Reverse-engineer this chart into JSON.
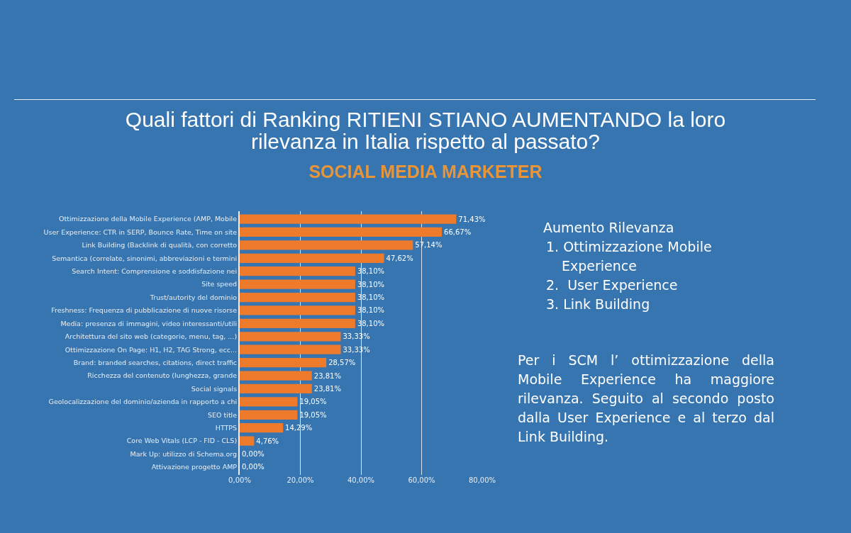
{
  "chart_data": {
    "type": "bar",
    "orientation": "horizontal",
    "title": "Quali fattori di Ranking RITIENI STIANO AUMENTANDO la loro rilevanza in Italia rispetto al passato?",
    "subtitle": "SOCIAL MEDIA MARKETER",
    "categories": [
      "Ottimizzazione della Mobile Experience (AMP, Mobile",
      "User Experience: CTR in SERP, Bounce Rate, Time on site",
      "Link Building (Backlink di qualità, con corretto",
      "Semantica (correlate, sinonimi, abbreviazioni e termini",
      "Search Intent: Comprensione e soddisfazione nei",
      "Site speed",
      "Trust/autority del dominio",
      "Freshness: Frequenza di pubblicazione di nuove risorse",
      "Media: presenza di immagini, video interessanti/utili",
      "Architettura del sito web (categorie, menu, tag, ...)",
      "Ottimizzazione On Page: H1, H2, TAG Strong, ecc...",
      "Brand: branded searches, citations, direct traffic",
      "Ricchezza del contenuto (lunghezza, grande",
      "Social signals",
      "Geolocalizzazione del dominio/azienda in rapporto a chi",
      "SEO title",
      "HTTPS",
      "Core Web Vitals (LCP - FID - CLS)",
      "Mark Up: utilizzo di Schema.org",
      "Attivazione progetto AMP"
    ],
    "values": [
      71.43,
      66.67,
      57.14,
      47.62,
      38.1,
      38.1,
      38.1,
      38.1,
      38.1,
      33.33,
      33.33,
      28.57,
      23.81,
      23.81,
      19.05,
      19.05,
      14.29,
      4.76,
      0.0,
      0.0
    ],
    "value_labels": [
      "71,43%",
      "66,67%",
      "57,14%",
      "47,62%",
      "38,10%",
      "38,10%",
      "38,10%",
      "38,10%",
      "38,10%",
      "33,33%",
      "33,33%",
      "28,57%",
      "23,81%",
      "23,81%",
      "19,05%",
      "19,05%",
      "14,29%",
      "4,76%",
      "0,00%",
      "0,00%"
    ],
    "color": "#ee7a2c",
    "xlim": [
      0,
      80
    ],
    "xticks": [
      {
        "value": 0,
        "label": "0,00%"
      },
      {
        "value": 20,
        "label": "20,00%"
      },
      {
        "value": 40,
        "label": "40,00%"
      },
      {
        "value": 60,
        "label": "60,00%"
      },
      {
        "value": 80,
        "label": "80,00%"
      }
    ],
    "grid": "x",
    "annotations": [
      "Aumento Rilevanza",
      "1. Ottimizzazione Mobile Experience",
      "2.  User Experience",
      "3. Link Building",
      "Per i SCM l’ ottimizzazione della Mobile Experience ha maggiore rilevanza. Seguito al secondo posto dalla User Experience e al terzo dal Link Building."
    ]
  }
}
